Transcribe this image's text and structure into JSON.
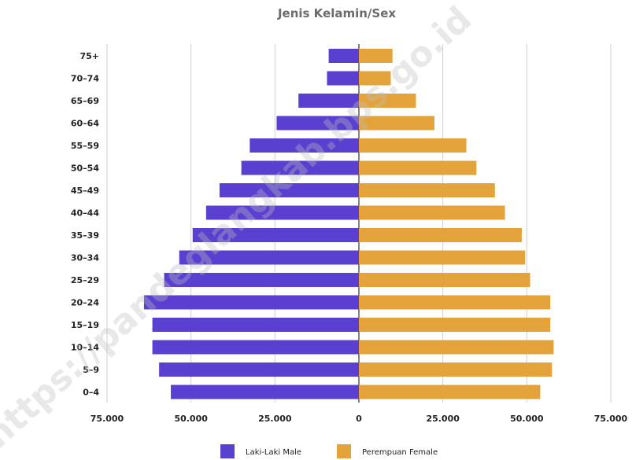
{
  "chart_data": {
    "type": "bar",
    "orientation": "horizontal-diverging",
    "title": "Jenis Kelamin/Sex",
    "categories": [
      "75+",
      "70–74",
      "65–69",
      "60–64",
      "55–59",
      "50–54",
      "45–49",
      "40–44",
      "35–39",
      "30–34",
      "25–29",
      "20–24",
      "15–19",
      "10–14",
      "5–9",
      "0–4"
    ],
    "x_tick_labels": [
      "75.000",
      "50.000",
      "25.000",
      "0",
      "25.000",
      "50.000",
      "75.000"
    ],
    "xlim": [
      -75000,
      75000
    ],
    "grid": true,
    "legend_position": "bottom",
    "series": [
      {
        "name": "Laki-Laki Male",
        "color": "#5b3fd0",
        "values": [
          -9000,
          -9500,
          -18000,
          -24500,
          -32500,
          -35000,
          -41500,
          -45500,
          -49500,
          -53500,
          -58000,
          -64000,
          -61500,
          -61500,
          -59500,
          -56000
        ]
      },
      {
        "name": "Perempuan Female",
        "color": "#e4a33a",
        "values": [
          10000,
          9500,
          17000,
          22500,
          32000,
          35000,
          40500,
          43500,
          48500,
          49500,
          51000,
          57000,
          57000,
          58000,
          57500,
          54000
        ]
      }
    ],
    "watermark": "https://pandeglangkab.bps.go.id"
  }
}
